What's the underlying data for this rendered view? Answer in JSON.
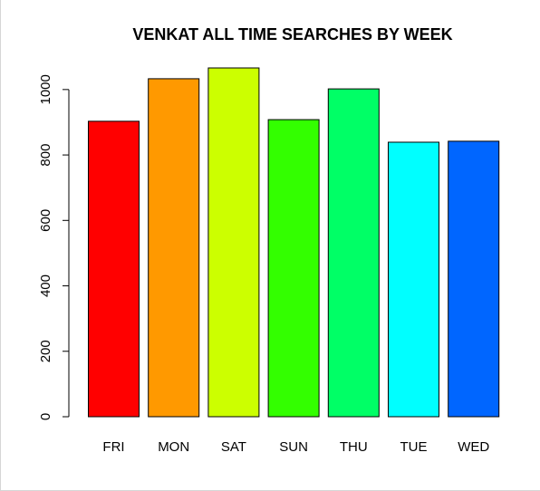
{
  "chart_data": {
    "type": "bar",
    "title": "VENKAT ALL TIME SEARCHES BY WEEK",
    "xlabel": "",
    "ylabel": "",
    "categories": [
      "FRI",
      "MON",
      "SAT",
      "SUN",
      "THU",
      "TUE",
      "WED"
    ],
    "values": [
      903,
      1033,
      1066,
      908,
      1002,
      839,
      842
    ],
    "colors": [
      "#FF0000",
      "#FF9900",
      "#CCFF00",
      "#33FF00",
      "#00FF66",
      "#00FFFF",
      "#0066FF"
    ],
    "y_ticks": [
      0,
      200,
      400,
      600,
      800,
      1000
    ],
    "ylim": [
      0,
      1066
    ],
    "grid": false,
    "legend": "none"
  }
}
